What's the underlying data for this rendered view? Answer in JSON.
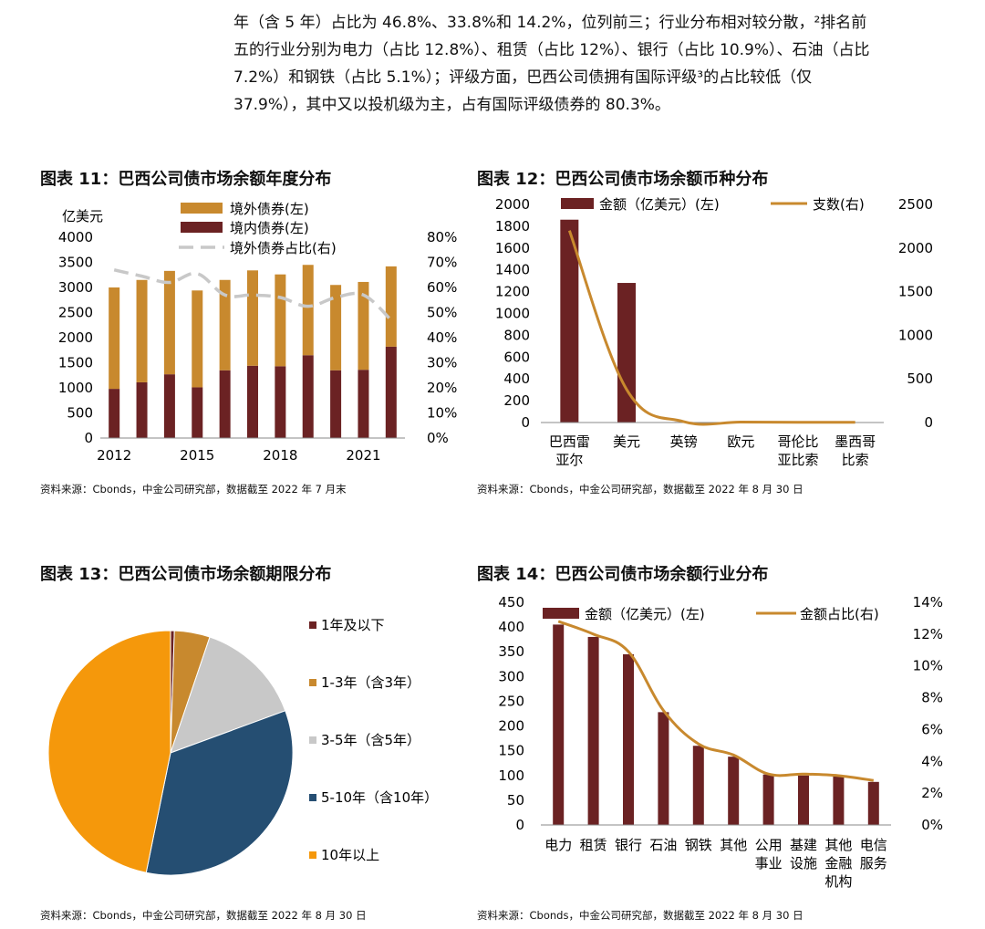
{
  "paragraph": [
    "年（含 5 年）占比为 46.8%、33.8%和 14.2%，位列前三；行业分布相对较分散，²排名前",
    "五的行业分别为电力（占比 12.8%）、租赁（占比 12%）、银行（占比 10.9%）、石油（占比",
    "7.2%）和钢铁（占比 5.1%）；评级方面，巴西公司债拥有国际评级³的占比较低（仅",
    "37.9%），其中又以投机级为主，占有国际评级债券的 80.3%。"
  ],
  "colors": {
    "overseas": "#C8892E",
    "domestic": "#6B2223",
    "share_line": "#C8C8C8",
    "count_line": "#C8892E",
    "pie": [
      "#6B2223",
      "#C8892E",
      "#C8C8C8",
      "#254E72",
      "#F5980B"
    ]
  },
  "figure11": {
    "title": "图表 11：巴西公司债市场余额年度分布",
    "source": "资料来源：Cbonds，中金公司研究部，数据截至 2022 年 7 月末",
    "chart_data": {
      "type": "bar",
      "ylabel": "亿美元",
      "ylim": [
        0,
        4000
      ],
      "y2lim": [
        0,
        0.8
      ],
      "yticks": [
        "0",
        "500",
        "1000",
        "1500",
        "2000",
        "2500",
        "3000",
        "3500",
        "4000"
      ],
      "y2ticks": [
        "0%",
        "10%",
        "20%",
        "30%",
        "40%",
        "50%",
        "60%",
        "70%",
        "80%"
      ],
      "x_tick_labels": [
        "2012",
        "2015",
        "2018",
        "2021"
      ],
      "x_tick_positions": [
        0,
        3,
        6,
        9
      ],
      "legend": [
        "境外债券(左)",
        "境内债券(左)",
        "境外债券占比(右)"
      ],
      "series": [
        {
          "name": "境外债券(左)",
          "values": [
            2020,
            2040,
            2060,
            1930,
            1800,
            1900,
            1830,
            1800,
            1700,
            1750,
            1600
          ]
        },
        {
          "name": "境内债券(左)",
          "values": [
            980,
            1110,
            1270,
            1010,
            1350,
            1440,
            1430,
            1650,
            1350,
            1360,
            1820
          ]
        },
        {
          "name": "境外债券占比(右)",
          "values": [
            0.67,
            0.645,
            0.62,
            0.655,
            0.57,
            0.57,
            0.56,
            0.525,
            0.56,
            0.57,
            0.47
          ]
        }
      ]
    }
  },
  "figure12": {
    "title": "图表 12：巴西公司债市场余额币种分布",
    "source": "资料来源：Cbonds，中金公司研究部，数据截至 2022 年 8 月 30 日",
    "chart_data": {
      "type": "bar",
      "ylim": [
        0,
        2000
      ],
      "y2lim": [
        0,
        2500
      ],
      "yticks": [
        "0",
        "200",
        "400",
        "600",
        "800",
        "1000",
        "1200",
        "1400",
        "1600",
        "1800",
        "2000"
      ],
      "y2ticks": [
        "0",
        "500",
        "1000",
        "1500",
        "2000",
        "2500"
      ],
      "categories": [
        [
          "巴西雷",
          "亚尔"
        ],
        [
          "美元"
        ],
        [
          "英镑"
        ],
        [
          "欧元"
        ],
        [
          "哥伦比",
          "亚比索"
        ],
        [
          "墨西哥",
          "比索"
        ]
      ],
      "legend": [
        "金额（亿美元）(左)",
        "支数(右)"
      ],
      "series": [
        {
          "name": "金额（亿美元）(左)",
          "values": [
            1860,
            1280,
            5,
            3,
            2,
            1
          ]
        },
        {
          "name": "支数(右)",
          "values": [
            2200,
            380,
            10,
            5,
            3,
            2
          ]
        }
      ]
    }
  },
  "figure13": {
    "title": "图表 13：巴西公司债市场余额期限分布",
    "source": "资料来源：Cbonds，中金公司研究部，数据截至 2022 年 8 月 30 日",
    "chart_data": {
      "type": "pie",
      "categories": [
        "1年及以下",
        "1-3年（含3年）",
        "3-5年（含5年）",
        "5-10年（含10年）",
        "10年以上"
      ],
      "values": [
        0.5,
        4.7,
        14.2,
        33.8,
        46.8
      ]
    }
  },
  "figure14": {
    "title": "图表 14：巴西公司债市场余额行业分布",
    "source": "资料来源：Cbonds，中金公司研究部，数据截至 2022 年 8 月 30 日",
    "chart_data": {
      "type": "bar",
      "ylim": [
        0,
        450
      ],
      "y2lim": [
        0,
        0.14
      ],
      "yticks": [
        "0",
        "50",
        "100",
        "150",
        "200",
        "250",
        "300",
        "350",
        "400",
        "450"
      ],
      "y2ticks": [
        "0%",
        "2%",
        "4%",
        "6%",
        "8%",
        "10%",
        "12%",
        "14%"
      ],
      "categories": [
        [
          "电力"
        ],
        [
          "租赁"
        ],
        [
          "银行"
        ],
        [
          "石油"
        ],
        [
          "钢铁"
        ],
        [
          "其他"
        ],
        [
          "公用",
          "事业"
        ],
        [
          "基建",
          "设施"
        ],
        [
          "其他",
          "金融",
          "机构"
        ],
        [
          "电信",
          "服务"
        ]
      ],
      "legend": [
        "金额（亿美元）(左)",
        "金额占比(右)"
      ],
      "series": [
        {
          "name": "金额（亿美元）(左)",
          "values": [
            405,
            380,
            345,
            228,
            160,
            138,
            102,
            100,
            98,
            87
          ]
        },
        {
          "name": "金额占比(右)",
          "values": [
            0.128,
            0.12,
            0.109,
            0.072,
            0.051,
            0.044,
            0.032,
            0.032,
            0.031,
            0.028
          ]
        }
      ]
    }
  }
}
